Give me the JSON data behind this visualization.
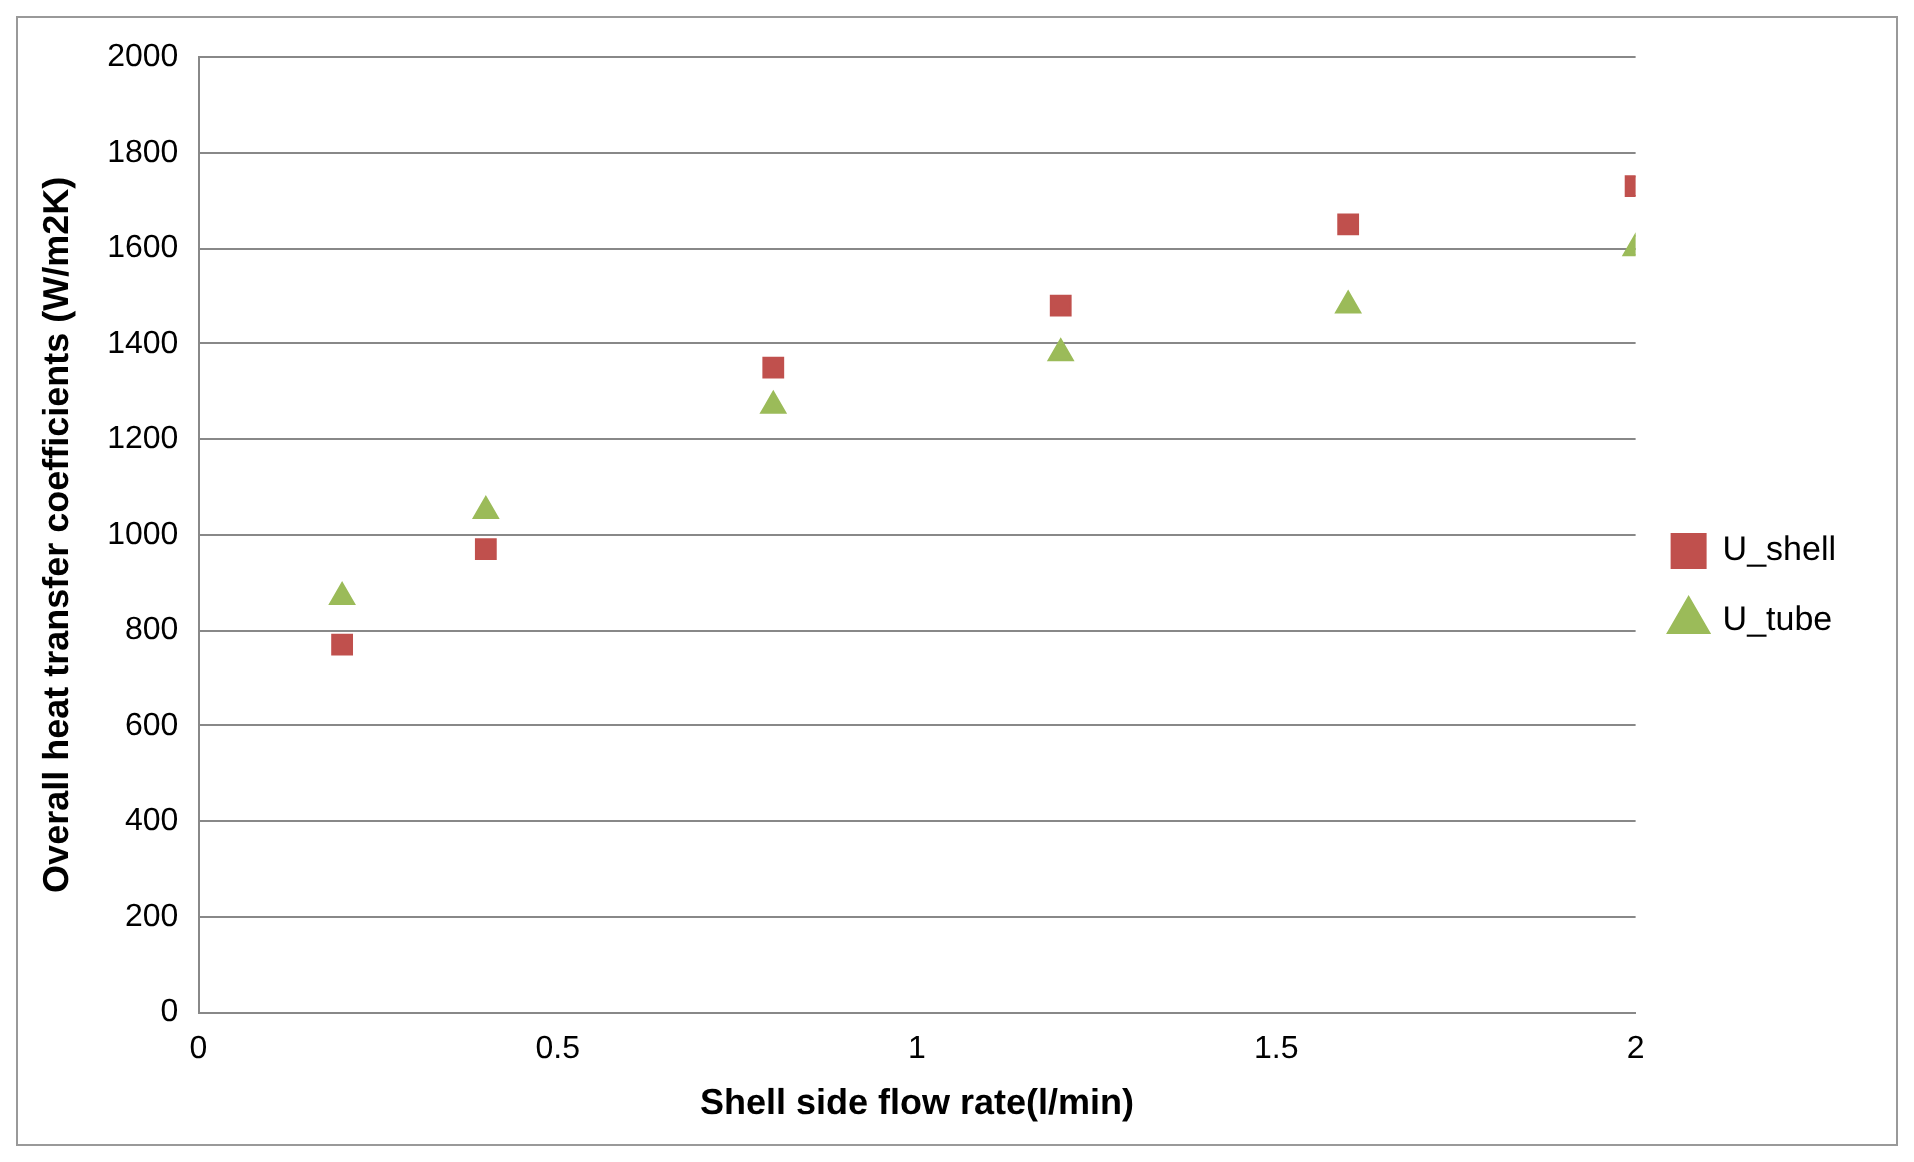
{
  "chart_data": {
    "type": "scatter",
    "xlabel": "Shell side flow rate(l/min)",
    "ylabel": "Overall heat transfer coefficients (W/m2K)",
    "x": [
      0.2,
      0.4,
      0.8,
      1.2,
      1.6,
      2.0
    ],
    "series": [
      {
        "name": "U_shell",
        "color": "#c0504d",
        "marker": "square",
        "values": [
          770,
          970,
          1350,
          1480,
          1650,
          1730
        ]
      },
      {
        "name": "U_tube",
        "color": "#9bbb59",
        "marker": "triangle",
        "values": [
          870,
          1050,
          1270,
          1380,
          1480,
          1600
        ]
      }
    ],
    "xlim": [
      0,
      2
    ],
    "xticks": [
      0,
      0.5,
      1,
      1.5,
      2
    ],
    "ylim": [
      0,
      2000
    ],
    "yticks": [
      0,
      200,
      400,
      600,
      800,
      1000,
      1200,
      1400,
      1600,
      1800,
      2000
    ],
    "grid": "y",
    "legend": "right"
  }
}
